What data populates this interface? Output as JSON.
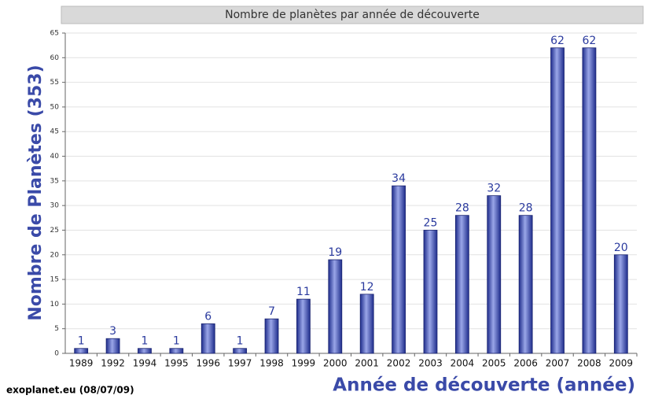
{
  "chart_data": {
    "type": "bar",
    "title": "Nombre de planètes par année de découverte",
    "y_label": "Nombre de Planètes (353)",
    "x_label": "Année de découverte (année)",
    "source": "exoplanet.eu (08/07/09)",
    "categories": [
      "1989",
      "1992",
      "1994",
      "1995",
      "1996",
      "1997",
      "1998",
      "1999",
      "2000",
      "2001",
      "2002",
      "2003",
      "2004",
      "2005",
      "2006",
      "2007",
      "2008",
      "2009"
    ],
    "values": [
      1,
      3,
      1,
      1,
      6,
      1,
      7,
      11,
      19,
      12,
      34,
      25,
      28,
      32,
      28,
      62,
      62,
      20
    ],
    "color": "#1f2d8c",
    "ylim": [
      0,
      65
    ],
    "yticks": [
      0,
      5,
      10,
      15,
      20,
      25,
      30,
      35,
      40,
      45,
      50,
      55,
      60,
      65
    ],
    "grid": true
  }
}
